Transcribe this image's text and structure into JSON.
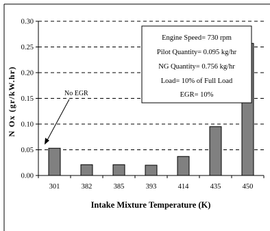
{
  "chart_data": {
    "type": "bar",
    "categories": [
      "301",
      "382",
      "385",
      "393",
      "414",
      "435",
      "450"
    ],
    "values": [
      0.053,
      0.021,
      0.021,
      0.02,
      0.037,
      0.095,
      0.257
    ],
    "xlabel": "Intake Mixture Temperature (K)",
    "ylabel": "N Ox (gr/kW.hr)",
    "ylim": [
      0,
      0.3
    ],
    "yticks": [
      "0.00",
      "0.05",
      "0.10",
      "0.15",
      "0.20",
      "0.25",
      "0.30"
    ],
    "grid": "horizontal dashed",
    "bar_color": "#808080",
    "info_box": [
      "Engine Speed= 730 rpm",
      "Pilot Quantity= 0.095 kg/hr",
      "NG Quantity= 0.756 kg/hr",
      "Load= 10% of Full Load",
      "EGR= 10%"
    ],
    "annotation": "No EGR"
  }
}
